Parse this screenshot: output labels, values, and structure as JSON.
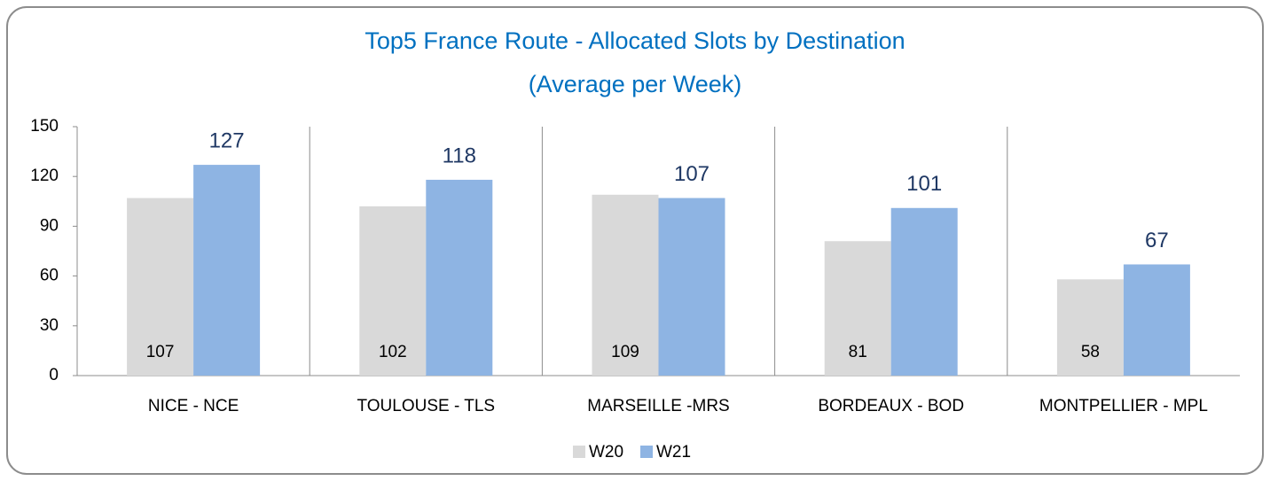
{
  "chart_data": {
    "type": "bar",
    "title": "Top5 France Route - Allocated Slots by Destination",
    "subtitle": "(Average per Week)",
    "categories": [
      "NICE - NCE",
      "TOULOUSE - TLS",
      "MARSEILLE -MRS",
      "BORDEAUX - BOD",
      "MONTPELLIER - MPL"
    ],
    "series": [
      {
        "name": "W20",
        "color": "#d9d9d9",
        "values": [
          107,
          102,
          109,
          81,
          58
        ]
      },
      {
        "name": "W21",
        "color": "#8eb4e3",
        "values": [
          127,
          118,
          107,
          101,
          67
        ]
      }
    ],
    "ylim": [
      0,
      150
    ],
    "yticks": [
      0,
      30,
      60,
      90,
      120,
      150
    ],
    "grid": false,
    "legend": "bottom"
  }
}
